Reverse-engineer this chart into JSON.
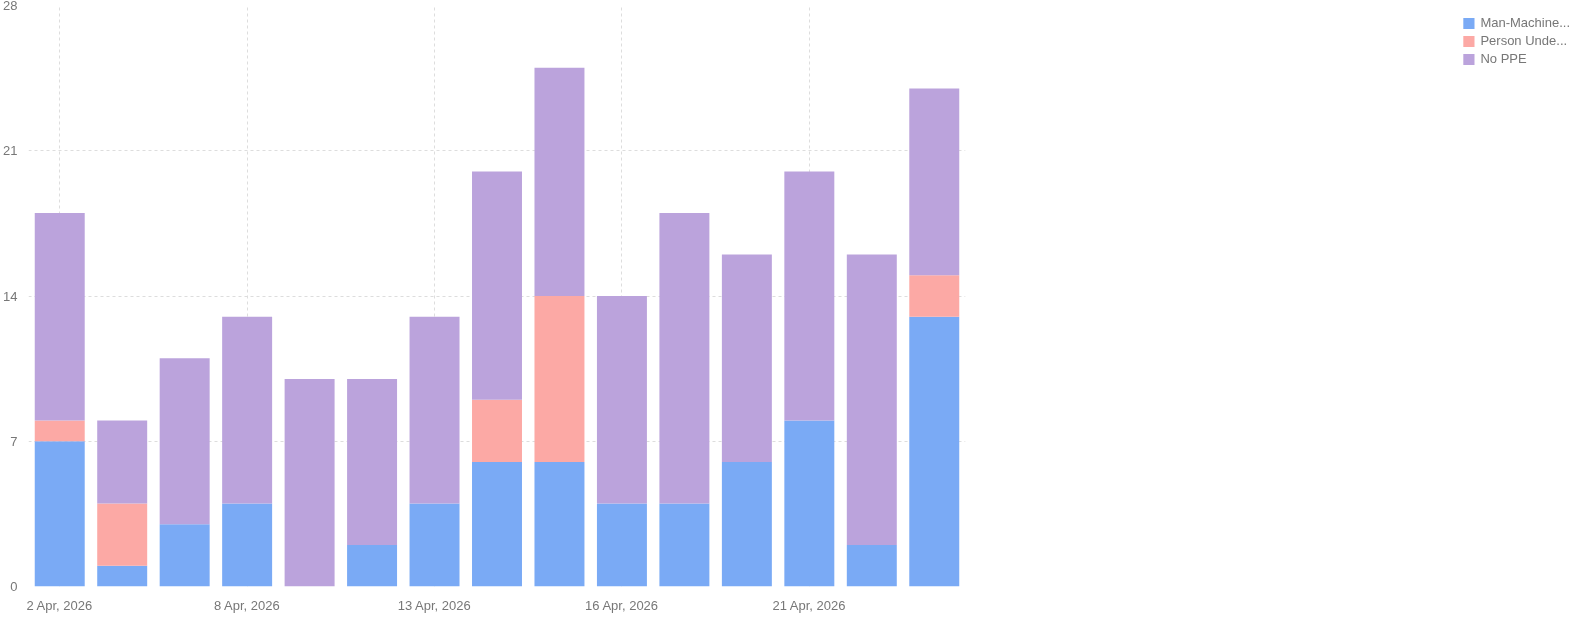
{
  "chart_data": {
    "type": "bar",
    "stacked": true,
    "categories": [
      "2 Apr, 2026",
      null,
      null,
      "8 Apr, 2026",
      null,
      null,
      "13 Apr, 2026",
      null,
      null,
      "16 Apr, 2026",
      null,
      null,
      "21 Apr, 2026",
      null,
      null
    ],
    "series": [
      {
        "name": "Man-Machine...",
        "color": "#7aaaf5",
        "values": [
          7,
          1,
          3,
          4,
          0,
          2,
          4,
          6,
          6,
          4,
          4,
          6,
          8,
          2,
          13
        ]
      },
      {
        "name": "Person Unde...",
        "color": "#fca9a5",
        "values": [
          1,
          3,
          0,
          0,
          0,
          0,
          0,
          3,
          8,
          0,
          0,
          0,
          0,
          0,
          2
        ]
      },
      {
        "name": "No PPE",
        "color": "#bba3dc",
        "values": [
          10,
          4,
          8,
          9,
          10,
          8,
          9,
          11,
          11,
          10,
          14,
          10,
          12,
          14,
          9
        ]
      }
    ],
    "ylim": [
      0,
      28
    ],
    "yticks": [
      0,
      7,
      14,
      21,
      28
    ],
    "grid": true,
    "legend": "right"
  }
}
